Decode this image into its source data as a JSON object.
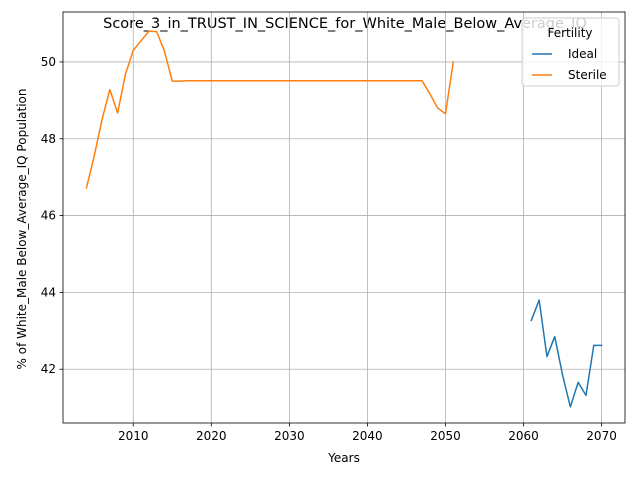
{
  "chart_data": {
    "type": "line",
    "title": "Score_3_in_TRUST_IN_SCIENCE_for_White_Male_Below_Average_IQ",
    "xlabel": "Years",
    "ylabel": "% of White_Male Below_Average_IQ Population",
    "xlim": [
      2001,
      2073
    ],
    "ylim": [
      40.6,
      51.3
    ],
    "xticks": [
      2010,
      2020,
      2030,
      2040,
      2050,
      2060,
      2070
    ],
    "yticks": [
      42,
      44,
      46,
      48,
      50
    ],
    "grid": true,
    "legend": {
      "title": "Fertility",
      "placement": "top-right"
    },
    "series": [
      {
        "name": "Ideal",
        "color": "#1f77b4",
        "x": [
          2061,
          2062,
          2063,
          2064,
          2065,
          2066,
          2067,
          2068,
          2069,
          2070
        ],
        "y": [
          43.27,
          43.8,
          42.33,
          42.85,
          41.85,
          41.02,
          41.66,
          41.32,
          42.62,
          42.62
        ]
      },
      {
        "name": "Sterile",
        "color": "#ff7f0e",
        "x": [
          2004,
          2005,
          2006,
          2007,
          2008,
          2009,
          2010,
          2011,
          2012,
          2013,
          2014,
          2015,
          2016,
          2017,
          2047,
          2048,
          2049,
          2050,
          2051
        ],
        "y": [
          46.72,
          47.55,
          48.5,
          49.28,
          48.67,
          49.68,
          50.3,
          50.55,
          50.8,
          50.79,
          50.28,
          49.5,
          49.5,
          49.51,
          49.51,
          49.17,
          48.8,
          48.65,
          50.0
        ]
      }
    ]
  }
}
